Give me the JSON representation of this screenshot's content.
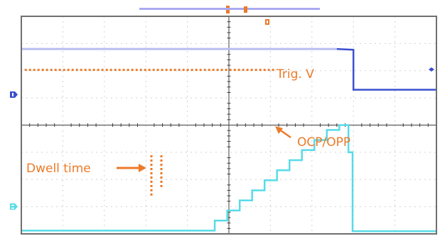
{
  "colors": {
    "background": "#ffffff",
    "frame": "#6f6f6f",
    "grid": "#d2d2d2",
    "center_axis": "#3c3c3c",
    "channel1": "#3b4fd0",
    "channel1_light": "#b8bdf0",
    "channel2": "#58dbe8",
    "annotation": "#ec7a28",
    "top_bar": "#a9a9f2"
  },
  "icons": {
    "ch1_marker": "channel-1-marker-icon",
    "ch2_marker": "channel-2-marker-icon",
    "trigger_marker": "trigger-marker-icon",
    "trigger_level_marker": "trigger-level-marker-icon"
  },
  "chart_data": {
    "type": "line",
    "title": "",
    "xlabel": "",
    "ylabel": "",
    "xlim": [
      0,
      10
    ],
    "ylim": [
      0,
      8
    ],
    "grid": true,
    "grid_divisions": {
      "x": 10,
      "y": 8
    },
    "legend": "none",
    "series": [
      {
        "channel_marker": "1",
        "x": [
          0,
          7.6,
          8.0,
          8.0,
          10
        ],
        "y": [
          6.8,
          6.8,
          6.77,
          5.3,
          5.3
        ]
      },
      {
        "channel_marker": "2",
        "x": [
          0,
          4.66,
          4.66,
          4.96,
          4.96,
          5.26,
          5.26,
          5.56,
          5.56,
          5.86,
          5.86,
          6.16,
          6.16,
          6.46,
          6.46,
          6.76,
          6.76,
          7.06,
          7.06,
          7.36,
          7.36,
          7.66,
          7.66,
          7.88,
          7.88,
          7.98,
          7.98,
          10
        ],
        "y": [
          0.12,
          0.12,
          0.49,
          0.49,
          0.86,
          0.86,
          1.23,
          1.23,
          1.6,
          1.6,
          1.97,
          1.97,
          2.34,
          2.34,
          2.71,
          2.71,
          3.08,
          3.08,
          3.45,
          3.45,
          3.82,
          3.82,
          4.0,
          4.0,
          3.0,
          3.0,
          0.1,
          0.1
        ]
      }
    ],
    "trigger_level_y": 6.03,
    "annotations": [
      {
        "text": "Trig. V"
      },
      {
        "text": "OCP/OPP"
      },
      {
        "text": "Dwell time"
      }
    ]
  }
}
